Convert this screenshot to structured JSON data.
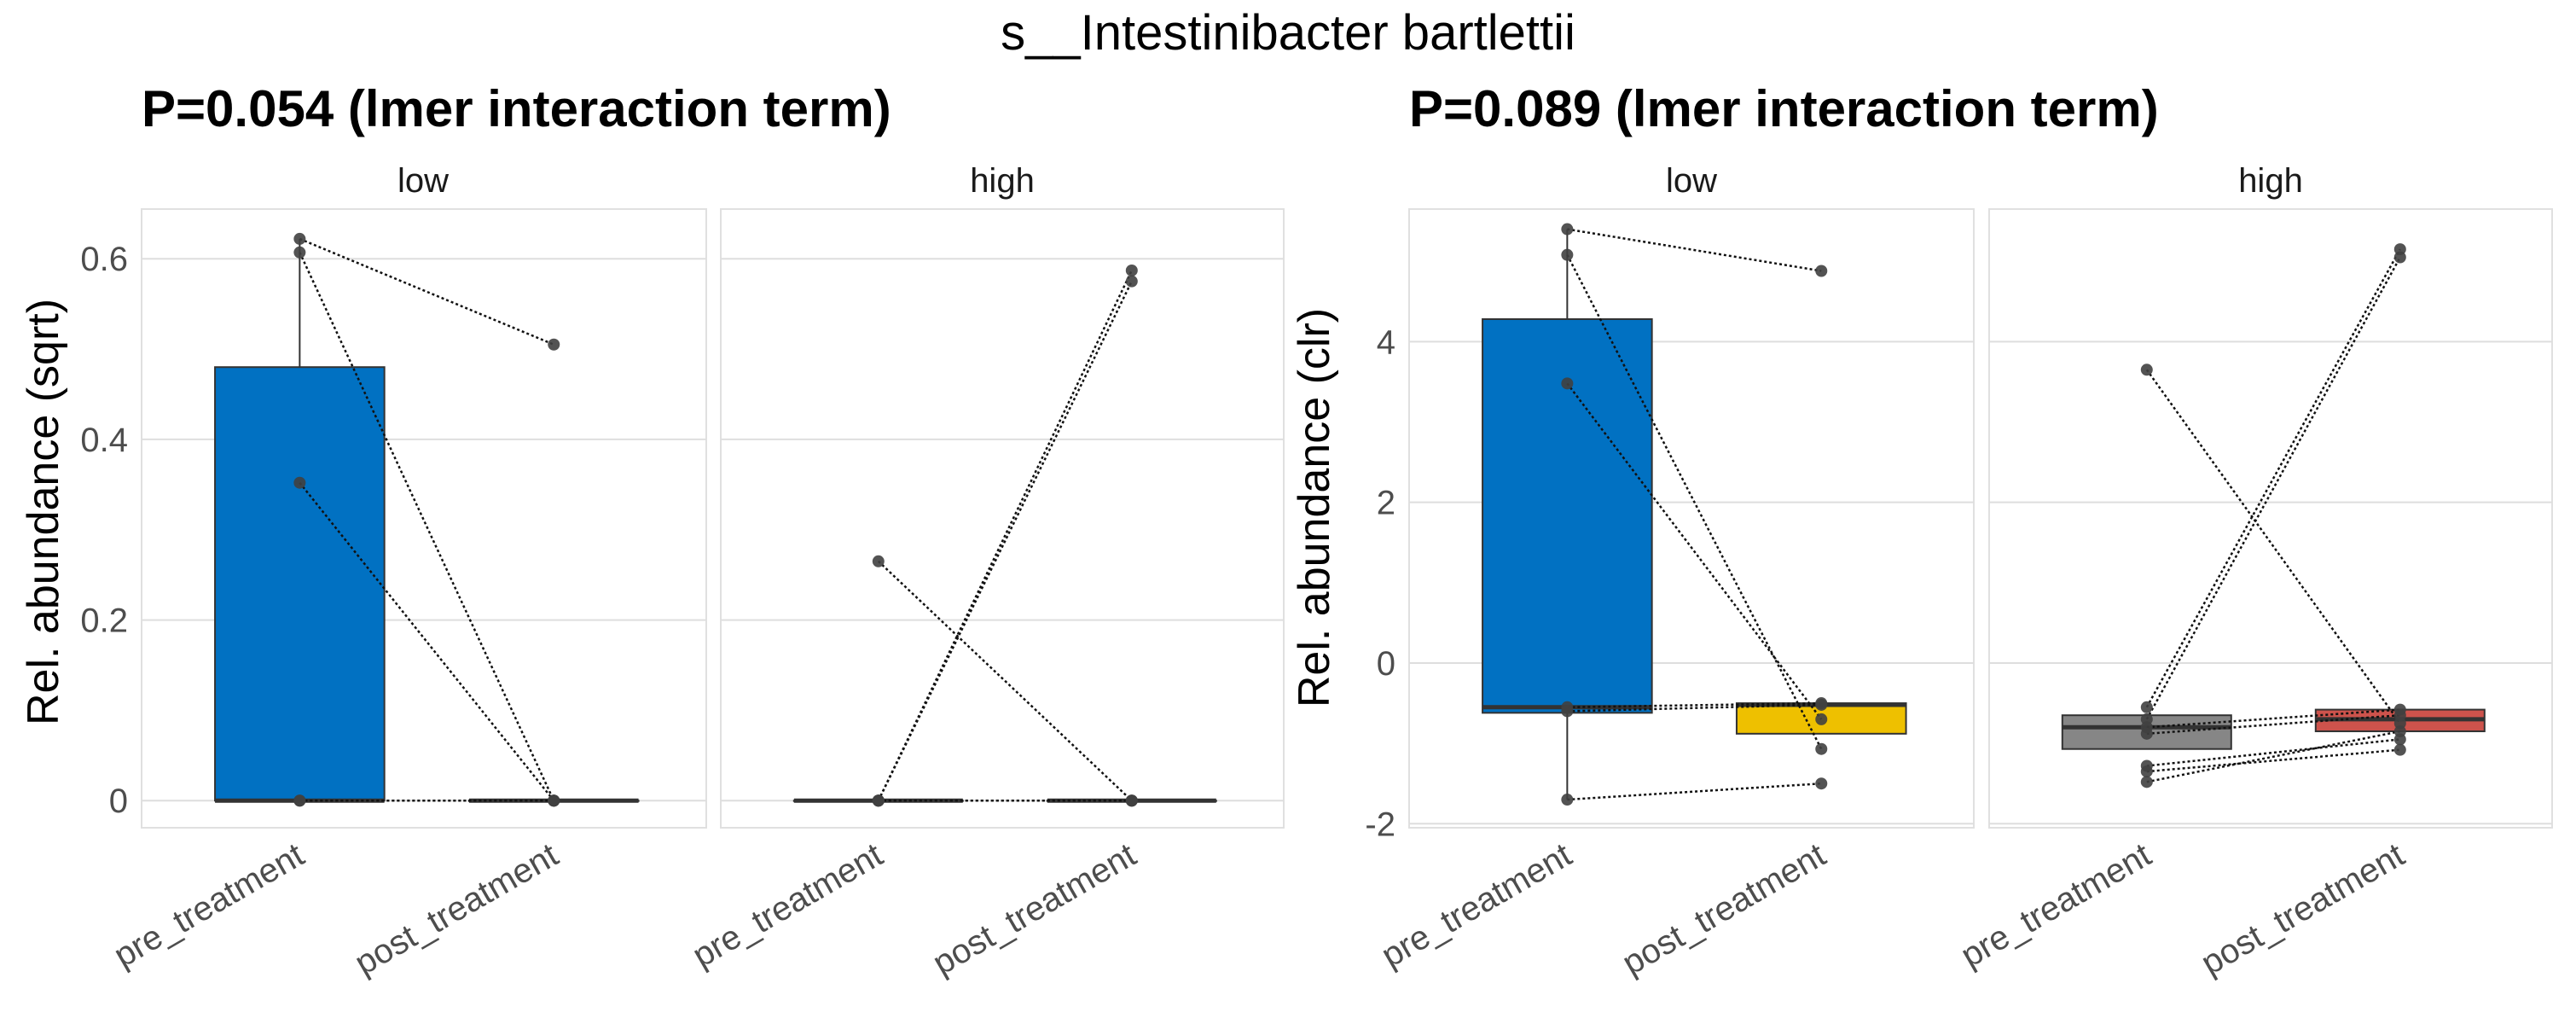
{
  "figure_title": "s__Intestinibacter bartlettii",
  "colors": {
    "pre_low": "#0171c2",
    "post_low": "#eec000",
    "pre_high": "#868686",
    "post_high": "#cd534c",
    "outline": "#333333",
    "grid": "#dedede",
    "point": "#404040"
  },
  "chart_data": [
    {
      "type": "box",
      "title": "P=0.054 (lmer interaction term)",
      "ylabel": "Rel. abundance (sqrt)",
      "ylim": [
        -0.03,
        0.655
      ],
      "yticks": [
        0,
        0.2,
        0.4,
        0.6
      ],
      "ytick_labels": [
        "0",
        "0.2",
        "0.4",
        "0.6"
      ],
      "categories": [
        "pre_treatment",
        "post_treatment"
      ],
      "facets": [
        {
          "label": "low",
          "boxes": [
            {
              "group": "pre_treatment",
              "fill_key": "pre_low",
              "q1": 0,
              "median": 0,
              "q3": 0.48,
              "whisker_low": 0,
              "whisker_high": 0.622
            },
            {
              "group": "post_treatment",
              "fill_key": "post_low",
              "q1": 0,
              "median": 0,
              "q3": 0,
              "whisker_low": 0,
              "whisker_high": 0
            }
          ],
          "pairs": [
            [
              0.622,
              0.505
            ],
            [
              0.607,
              0
            ],
            [
              0.352,
              0
            ],
            [
              0,
              0
            ],
            [
              0,
              0
            ]
          ]
        },
        {
          "label": "high",
          "boxes": [
            {
              "group": "pre_treatment",
              "fill_key": "pre_high",
              "q1": 0,
              "median": 0,
              "q3": 0,
              "whisker_low": 0,
              "whisker_high": 0
            },
            {
              "group": "post_treatment",
              "fill_key": "post_high",
              "q1": 0,
              "median": 0,
              "q3": 0,
              "whisker_low": 0,
              "whisker_high": 0
            }
          ],
          "pairs": [
            [
              0.265,
              0
            ],
            [
              0,
              0.587
            ],
            [
              0,
              0.575
            ],
            [
              0,
              0
            ],
            [
              0,
              0
            ]
          ],
          "outliers": {
            "pre_treatment": [
              0.265
            ],
            "post_treatment": [
              0.587,
              0.575
            ]
          }
        }
      ]
    },
    {
      "type": "box",
      "title": "P=0.089 (lmer interaction term)",
      "ylabel": "Rel. abundance (clr)",
      "ylim": [
        -2.05,
        5.65
      ],
      "yticks": [
        -2,
        0,
        2,
        4
      ],
      "ytick_labels": [
        "-2",
        "0",
        "2",
        "4"
      ],
      "categories": [
        "pre_treatment",
        "post_treatment"
      ],
      "facets": [
        {
          "label": "low",
          "boxes": [
            {
              "group": "pre_treatment",
              "fill_key": "pre_low",
              "q1": -0.62,
              "median": -0.55,
              "q3": 4.28,
              "whisker_low": -1.7,
              "whisker_high": 5.4
            },
            {
              "group": "post_treatment",
              "fill_key": "post_low",
              "q1": -0.88,
              "median": -0.52,
              "q3": -0.5,
              "whisker_low": -0.88,
              "whisker_high": -0.5
            }
          ],
          "pairs": [
            [
              5.4,
              4.88
            ],
            [
              5.08,
              -1.07
            ],
            [
              3.48,
              -0.7
            ],
            [
              -0.55,
              -0.5
            ],
            [
              -0.6,
              -0.52
            ],
            [
              -1.7,
              -1.5
            ]
          ],
          "outliers": {
            "post_treatment": [
              4.88,
              -1.07,
              -1.5
            ]
          }
        },
        {
          "label": "high",
          "boxes": [
            {
              "group": "pre_treatment",
              "fill_key": "pre_high",
              "q1": -1.07,
              "median": -0.8,
              "q3": -0.65,
              "whisker_low": -1.07,
              "whisker_high": -0.65
            },
            {
              "group": "post_treatment",
              "fill_key": "post_high",
              "q1": -0.85,
              "median": -0.7,
              "q3": -0.58,
              "whisker_low": -0.85,
              "whisker_high": -0.58
            }
          ],
          "pairs": [
            [
              3.65,
              -0.75
            ],
            [
              -0.55,
              5.15
            ],
            [
              -0.7,
              5.05
            ],
            [
              -0.8,
              -0.58
            ],
            [
              -0.88,
              -0.65
            ],
            [
              -1.28,
              -0.95
            ],
            [
              -1.35,
              -1.08
            ],
            [
              -1.48,
              -0.85
            ]
          ],
          "outliers": {
            "pre_treatment": [
              3.65,
              -0.55,
              -1.28,
              -1.35,
              -1.48
            ],
            "post_treatment": [
              5.15,
              5.05,
              -0.95,
              -1.08
            ]
          }
        }
      ]
    }
  ]
}
